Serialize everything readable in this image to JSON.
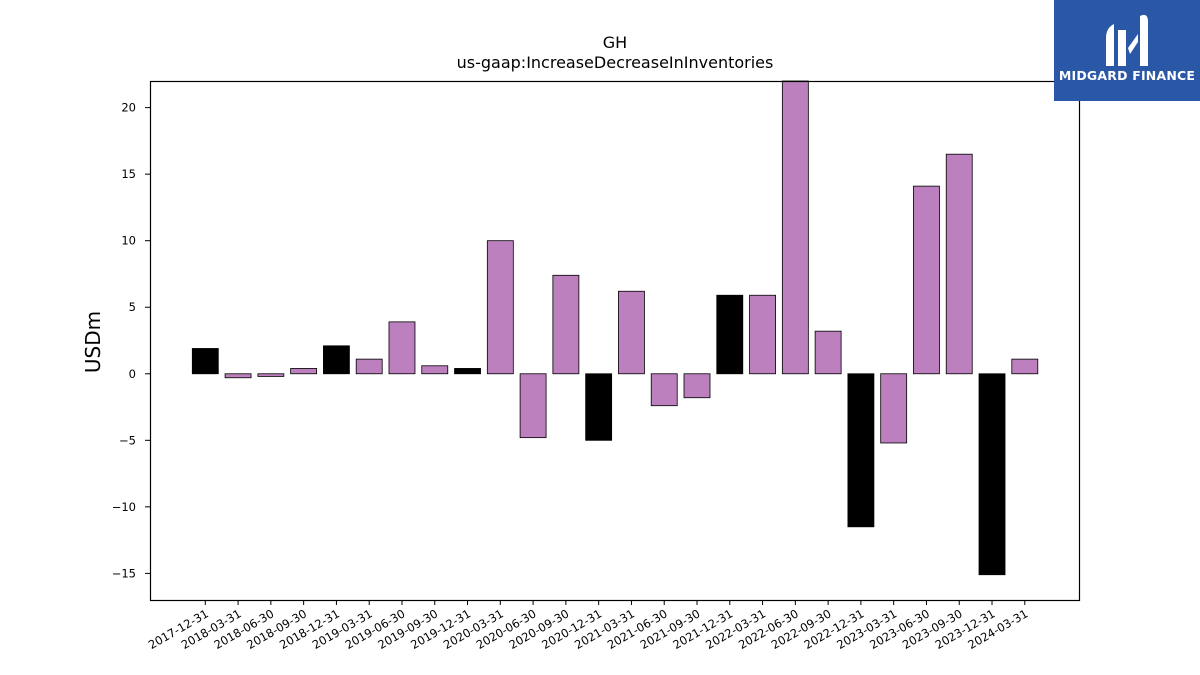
{
  "brand": {
    "name": "MIDGARD FINANCE",
    "color": "#2b58a6"
  },
  "chart_data": {
    "type": "bar",
    "title": "GH",
    "subtitle": "us-gaap:IncreaseDecreaseInInventories",
    "xlabel": "",
    "ylabel": "USDm",
    "ylim": [
      -17,
      22
    ],
    "yticks": [
      -15,
      -10,
      -5,
      0,
      5,
      10,
      15,
      20
    ],
    "grid": false,
    "categories": [
      "2017-12-31",
      "2018-03-31",
      "2018-06-30",
      "2018-09-30",
      "2018-12-31",
      "2019-03-31",
      "2019-06-30",
      "2019-09-30",
      "2019-12-31",
      "2020-03-31",
      "2020-06-30",
      "2020-09-30",
      "2020-12-31",
      "2021-03-31",
      "2021-06-30",
      "2021-09-30",
      "2021-12-31",
      "2022-03-31",
      "2022-06-30",
      "2022-09-30",
      "2022-12-31",
      "2023-03-31",
      "2023-06-30",
      "2023-09-30",
      "2023-12-31",
      "2024-03-31"
    ],
    "values": [
      1.9,
      -0.3,
      -0.2,
      0.4,
      2.1,
      1.1,
      3.9,
      0.6,
      0.4,
      10.0,
      -4.8,
      7.4,
      -5.0,
      6.2,
      -2.4,
      -1.8,
      5.9,
      5.9,
      22.5,
      3.2,
      -11.5,
      -5.2,
      14.1,
      16.5,
      -15.1,
      1.1
    ],
    "bar_colors": [
      "#000000",
      "#bb80bd",
      "#bb80bd",
      "#bb80bd",
      "#000000",
      "#bb80bd",
      "#bb80bd",
      "#bb80bd",
      "#000000",
      "#bb80bd",
      "#bb80bd",
      "#bb80bd",
      "#000000",
      "#bb80bd",
      "#bb80bd",
      "#bb80bd",
      "#000000",
      "#bb80bd",
      "#bb80bd",
      "#bb80bd",
      "#000000",
      "#bb80bd",
      "#bb80bd",
      "#bb80bd",
      "#000000",
      "#bb80bd"
    ]
  }
}
